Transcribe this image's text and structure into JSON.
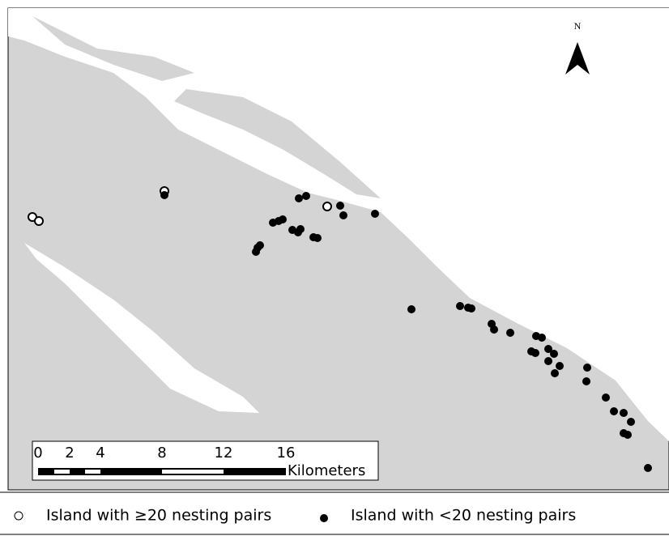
{
  "map": {
    "north_label": "N",
    "scale_bar": {
      "labels": [
        "0",
        "2",
        "4",
        "8",
        "12",
        "16"
      ],
      "unit": "Kilometers"
    }
  },
  "legend": {
    "items": [
      {
        "label": "Island with ≥20 nesting pairs"
      },
      {
        "label": "Island with <20 nesting pairs"
      }
    ]
  }
}
